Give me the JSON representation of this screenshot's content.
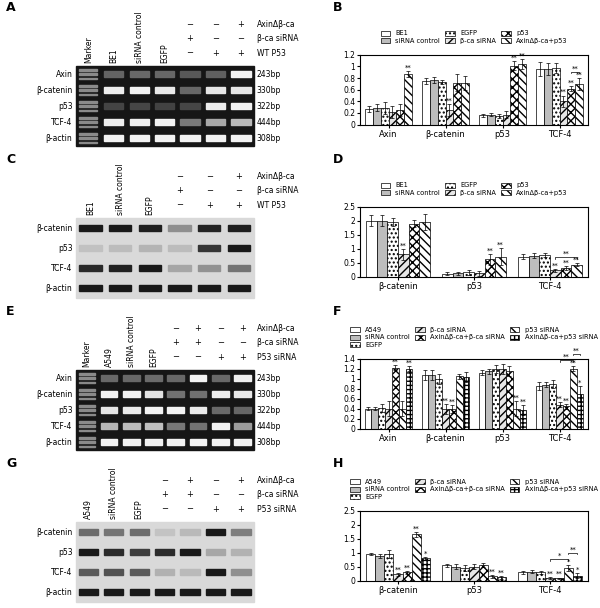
{
  "chart_data": [
    {
      "type": "bar",
      "title": "B",
      "categories": [
        "Axin",
        "β-catenin",
        "p53",
        "TCF-4"
      ],
      "ylim": [
        0,
        1.2
      ],
      "yticks": [
        0,
        0.2,
        0.4,
        0.6,
        0.8,
        1,
        1.2
      ],
      "legend": "lower center",
      "series": [
        {
          "name": "BE1",
          "color": "#ffffff",
          "values": [
            0.27,
            0.75,
            0.16,
            0.95
          ],
          "errors": [
            0.05,
            0.05,
            0.03,
            0.12
          ],
          "marks": [
            null,
            null,
            null,
            null
          ]
        },
        {
          "name": "siRNA control",
          "color": "#bdbdbd",
          "values": [
            0.29,
            0.77,
            0.17,
            0.95
          ],
          "errors": [
            0.06,
            0.05,
            0.03,
            0.1
          ],
          "marks": [
            null,
            null,
            null,
            null
          ]
        },
        {
          "name": "EGFP",
          "color": "#ffffff",
          "values": [
            0.28,
            0.73,
            0.15,
            0.97
          ],
          "errors": [
            0.1,
            0.04,
            0.03,
            0.08
          ],
          "marks": [
            null,
            null,
            null,
            null
          ]
        },
        {
          "name": "β-ca siRNA",
          "color": "#e6e6e6",
          "values": [
            0.22,
            0.25,
            0.17,
            0.4
          ],
          "errors": [
            0.1,
            0.1,
            0.06,
            0.1
          ],
          "marks": [
            null,
            "**",
            null,
            "**"
          ]
        },
        {
          "name": "p53",
          "color": "#ffffff",
          "values": [
            0.25,
            0.72,
            1.01,
            0.62
          ],
          "errors": [
            0.1,
            0.15,
            0.08,
            0.05
          ],
          "marks": [
            null,
            null,
            "**",
            "**"
          ]
        },
        {
          "name": "AxinΔβ-ca+p53",
          "color": "#ffffff",
          "values": [
            0.87,
            0.72,
            1.04,
            0.7
          ],
          "errors": [
            0.05,
            0.12,
            0.08,
            0.1
          ],
          "marks": [
            "**",
            null,
            "**",
            "**"
          ]
        }
      ],
      "brackets": [
        {
          "category": 3,
          "from": 4,
          "to": 5,
          "text": "**"
        }
      ]
    },
    {
      "type": "bar",
      "title": "D",
      "categories": [
        "β-catenin",
        "p53",
        "TCF-4"
      ],
      "ylim": [
        0,
        2.5
      ],
      "yticks": [
        0,
        0.5,
        1,
        1.5,
        2,
        2.5
      ],
      "legend": "lower center",
      "series": [
        {
          "name": "BE1",
          "color": "#ffffff",
          "values": [
            2.0,
            0.1,
            0.72
          ],
          "errors": [
            0.2,
            0.05,
            0.1
          ],
          "marks": [
            null,
            null,
            null
          ]
        },
        {
          "name": "siRNA control",
          "color": "#bdbdbd",
          "values": [
            2.0,
            0.12,
            0.75
          ],
          "errors": [
            0.2,
            0.05,
            0.08
          ],
          "marks": [
            null,
            null,
            null
          ]
        },
        {
          "name": "EGFP",
          "color": "#ffffff",
          "values": [
            1.95,
            0.15,
            0.78
          ],
          "errors": [
            0.15,
            0.1,
            0.06
          ],
          "marks": [
            null,
            null,
            null
          ]
        },
        {
          "name": "β-ca siRNA",
          "color": "#e6e6e6",
          "values": [
            0.8,
            0.12,
            0.22
          ],
          "errors": [
            0.2,
            0.08,
            0.06
          ],
          "marks": [
            "**",
            null,
            "**"
          ]
        },
        {
          "name": "p53",
          "color": "#ffffff",
          "values": [
            1.9,
            0.62,
            0.3
          ],
          "errors": [
            0.12,
            0.2,
            0.08
          ],
          "marks": [
            null,
            "**",
            "**"
          ]
        },
        {
          "name": "AxinΔβ-ca+p53",
          "color": "#ffffff",
          "values": [
            1.95,
            0.72,
            0.42
          ],
          "errors": [
            0.3,
            0.3,
            0.05
          ],
          "marks": [
            null,
            "**",
            "**"
          ]
        }
      ],
      "brackets": [
        {
          "category": 2,
          "from": 3,
          "to": 5,
          "text": "**"
        }
      ]
    },
    {
      "type": "bar",
      "title": "F",
      "categories": [
        "Axin",
        "β-catenin",
        "p53",
        "TCF-4"
      ],
      "ylim": [
        0,
        1.4
      ],
      "yticks": [
        0,
        0.2,
        0.4,
        0.6,
        0.8,
        1,
        1.2,
        1.4
      ],
      "legend": "lower center",
      "series": [
        {
          "name": "A549",
          "color": "#ffffff",
          "values": [
            0.4,
            1.08,
            1.12,
            0.85
          ],
          "errors": [
            0.03,
            0.1,
            0.05,
            0.08
          ],
          "marks": [
            null,
            null,
            null,
            null
          ]
        },
        {
          "name": "siRNA control",
          "color": "#bdbdbd",
          "values": [
            0.4,
            1.08,
            1.15,
            0.88
          ],
          "errors": [
            0.03,
            0.1,
            0.05,
            0.05
          ],
          "marks": [
            null,
            null,
            null,
            null
          ]
        },
        {
          "name": "EGFP",
          "color": "#ffffff",
          "values": [
            0.42,
            1.0,
            1.2,
            0.9
          ],
          "errors": [
            0.08,
            0.1,
            0.08,
            0.08
          ],
          "marks": [
            null,
            null,
            null,
            null
          ]
        },
        {
          "name": "β-ca siRNA",
          "color": "#e6e6e6",
          "values": [
            0.4,
            0.4,
            1.2,
            0.48
          ],
          "errors": [
            0.15,
            0.1,
            0.1,
            0.05
          ],
          "marks": [
            null,
            "**",
            null,
            "**"
          ]
        },
        {
          "name": "AxinΔβ-ca+β-ca siRNA",
          "color": "#ffffff",
          "values": [
            1.22,
            0.4,
            1.15,
            0.45
          ],
          "errors": [
            0.05,
            0.08,
            0.1,
            0.05
          ],
          "marks": [
            "**",
            "**",
            null,
            "**"
          ]
        },
        {
          "name": "p53 siRNA",
          "color": "#ffffff",
          "values": [
            0.4,
            1.05,
            0.4,
            1.2
          ],
          "errors": [
            0.15,
            0.05,
            0.15,
            0.05
          ],
          "marks": [
            null,
            null,
            "**",
            "**"
          ]
        },
        {
          "name": "AxinΔβ-ca+p53 siRNA",
          "color": "#ffffff",
          "values": [
            1.2,
            1.03,
            0.38,
            0.7
          ],
          "errors": [
            0.05,
            0.1,
            0.1,
            0.15
          ],
          "marks": [
            "**",
            null,
            "**",
            "*"
          ]
        }
      ],
      "brackets": [
        {
          "category": 3,
          "from": 3,
          "to": 5,
          "text": "**"
        },
        {
          "category": 3,
          "from": 5,
          "to": 6,
          "text": "**"
        }
      ]
    },
    {
      "type": "bar",
      "title": "H",
      "categories": [
        "β-catenin",
        "p53",
        "TCF-4"
      ],
      "ylim": [
        0,
        2.5
      ],
      "yticks": [
        0,
        0.5,
        1,
        1.5,
        2,
        2.5
      ],
      "legend": "lower center",
      "series": [
        {
          "name": "A549",
          "color": "#ffffff",
          "values": [
            0.95,
            0.55,
            0.3
          ],
          "errors": [
            0.05,
            0.05,
            0.05
          ],
          "marks": [
            null,
            null,
            null
          ]
        },
        {
          "name": "siRNA control",
          "color": "#bdbdbd",
          "values": [
            0.88,
            0.5,
            0.32
          ],
          "errors": [
            0.08,
            0.1,
            0.05
          ],
          "marks": [
            null,
            null,
            null
          ]
        },
        {
          "name": "EGFP",
          "color": "#ffffff",
          "values": [
            0.95,
            0.45,
            0.3
          ],
          "errors": [
            0.15,
            0.12,
            0.05
          ],
          "marks": [
            null,
            null,
            null
          ]
        },
        {
          "name": "β-ca siRNA",
          "color": "#e6e6e6",
          "values": [
            0.22,
            0.5,
            0.1
          ],
          "errors": [
            0.05,
            0.1,
            0.03
          ],
          "marks": [
            "**",
            null,
            "**"
          ]
        },
        {
          "name": "AxinΔβ-ca+β-ca siRNA",
          "color": "#ffffff",
          "values": [
            0.3,
            0.55,
            0.08
          ],
          "errors": [
            0.05,
            0.08,
            0.03
          ],
          "marks": [
            "**",
            null,
            "**"
          ]
        },
        {
          "name": "p53 siRNA",
          "color": "#ffffff",
          "values": [
            1.65,
            0.15,
            0.45
          ],
          "errors": [
            0.1,
            0.05,
            0.1
          ],
          "marks": [
            "**",
            "**",
            "*"
          ]
        },
        {
          "name": "AxinΔβ-ca+p53 siRNA",
          "color": "#ffffff",
          "values": [
            0.8,
            0.12,
            0.18
          ],
          "errors": [
            0.05,
            0.05,
            0.1
          ],
          "marks": [
            "*",
            "**",
            "*"
          ]
        }
      ],
      "brackets": [
        {
          "category": 2,
          "from": 3,
          "to": 5,
          "text": "*"
        },
        {
          "category": 2,
          "from": 5,
          "to": 6,
          "text": "**"
        }
      ]
    }
  ],
  "gels": [
    {
      "panel": "A",
      "marker_lane": "Marker",
      "lanes": [
        "BE1",
        "siRNA control",
        "EGFP",
        null,
        null,
        null
      ],
      "conditions": [
        {
          "name": "AxinΔβ-ca",
          "marks": [
            "−",
            "−",
            "+"
          ]
        },
        {
          "name": "β-ca siRNA",
          "marks": [
            "+",
            "−",
            "−"
          ]
        },
        {
          "name": "WT P53",
          "marks": [
            "−",
            "+",
            "+"
          ]
        }
      ],
      "rows": [
        {
          "name": "Axin",
          "size": "243bp"
        },
        {
          "name": "β-catenin",
          "size": "330bp"
        },
        {
          "name": "p53",
          "size": "322bp"
        },
        {
          "name": "TCF-4",
          "size": "444bp"
        },
        {
          "name": "β-actin",
          "size": "308bp"
        }
      ]
    },
    {
      "panel": "C",
      "lanes": [
        "BE1",
        "siRNA control",
        "EGFP",
        null,
        null,
        null
      ],
      "conditions": [
        {
          "name": "AxinΔβ-ca",
          "marks": [
            "−",
            "−",
            "+"
          ]
        },
        {
          "name": "β-ca siRNA",
          "marks": [
            "+",
            "−",
            "−"
          ]
        },
        {
          "name": "WT P53",
          "marks": [
            "−",
            "+",
            "+"
          ]
        }
      ],
      "rows": [
        {
          "name": "β-catenin"
        },
        {
          "name": "p53"
        },
        {
          "name": "TCF-4"
        },
        {
          "name": "β-actin"
        }
      ]
    },
    {
      "panel": "E",
      "marker_lane": "Marker",
      "lanes": [
        "A549",
        "siRNA control",
        "EGFP",
        null,
        null,
        null,
        null
      ],
      "conditions": [
        {
          "name": "AxinΔβ-ca",
          "marks": [
            "−",
            "+",
            "−",
            "+"
          ]
        },
        {
          "name": "β-ca siRNA",
          "marks": [
            "+",
            "+",
            "−",
            "−"
          ]
        },
        {
          "name": "P53 siRNA",
          "marks": [
            "−",
            "−",
            "+",
            "+"
          ]
        }
      ],
      "rows": [
        {
          "name": "Axin",
          "size": "243bp"
        },
        {
          "name": "β-catenin",
          "size": "330bp"
        },
        {
          "name": "p53",
          "size": "322bp"
        },
        {
          "name": "TCF-4",
          "size": "444bp"
        },
        {
          "name": "β-actin",
          "size": "308bp"
        }
      ]
    },
    {
      "panel": "G",
      "lanes": [
        "A549",
        "siRNA control",
        "EGFP",
        null,
        null,
        null,
        null
      ],
      "conditions": [
        {
          "name": "AxinΔβ-ca",
          "marks": [
            "−",
            "+",
            "−",
            "+"
          ]
        },
        {
          "name": "β-ca siRNA",
          "marks": [
            "+",
            "+",
            "−",
            "−"
          ]
        },
        {
          "name": "P53 siRNA",
          "marks": [
            "−",
            "−",
            "+",
            "+"
          ]
        }
      ],
      "rows": [
        {
          "name": "β-catenin"
        },
        {
          "name": "p53"
        },
        {
          "name": "TCF-4"
        },
        {
          "name": "β-actin"
        }
      ]
    }
  ]
}
